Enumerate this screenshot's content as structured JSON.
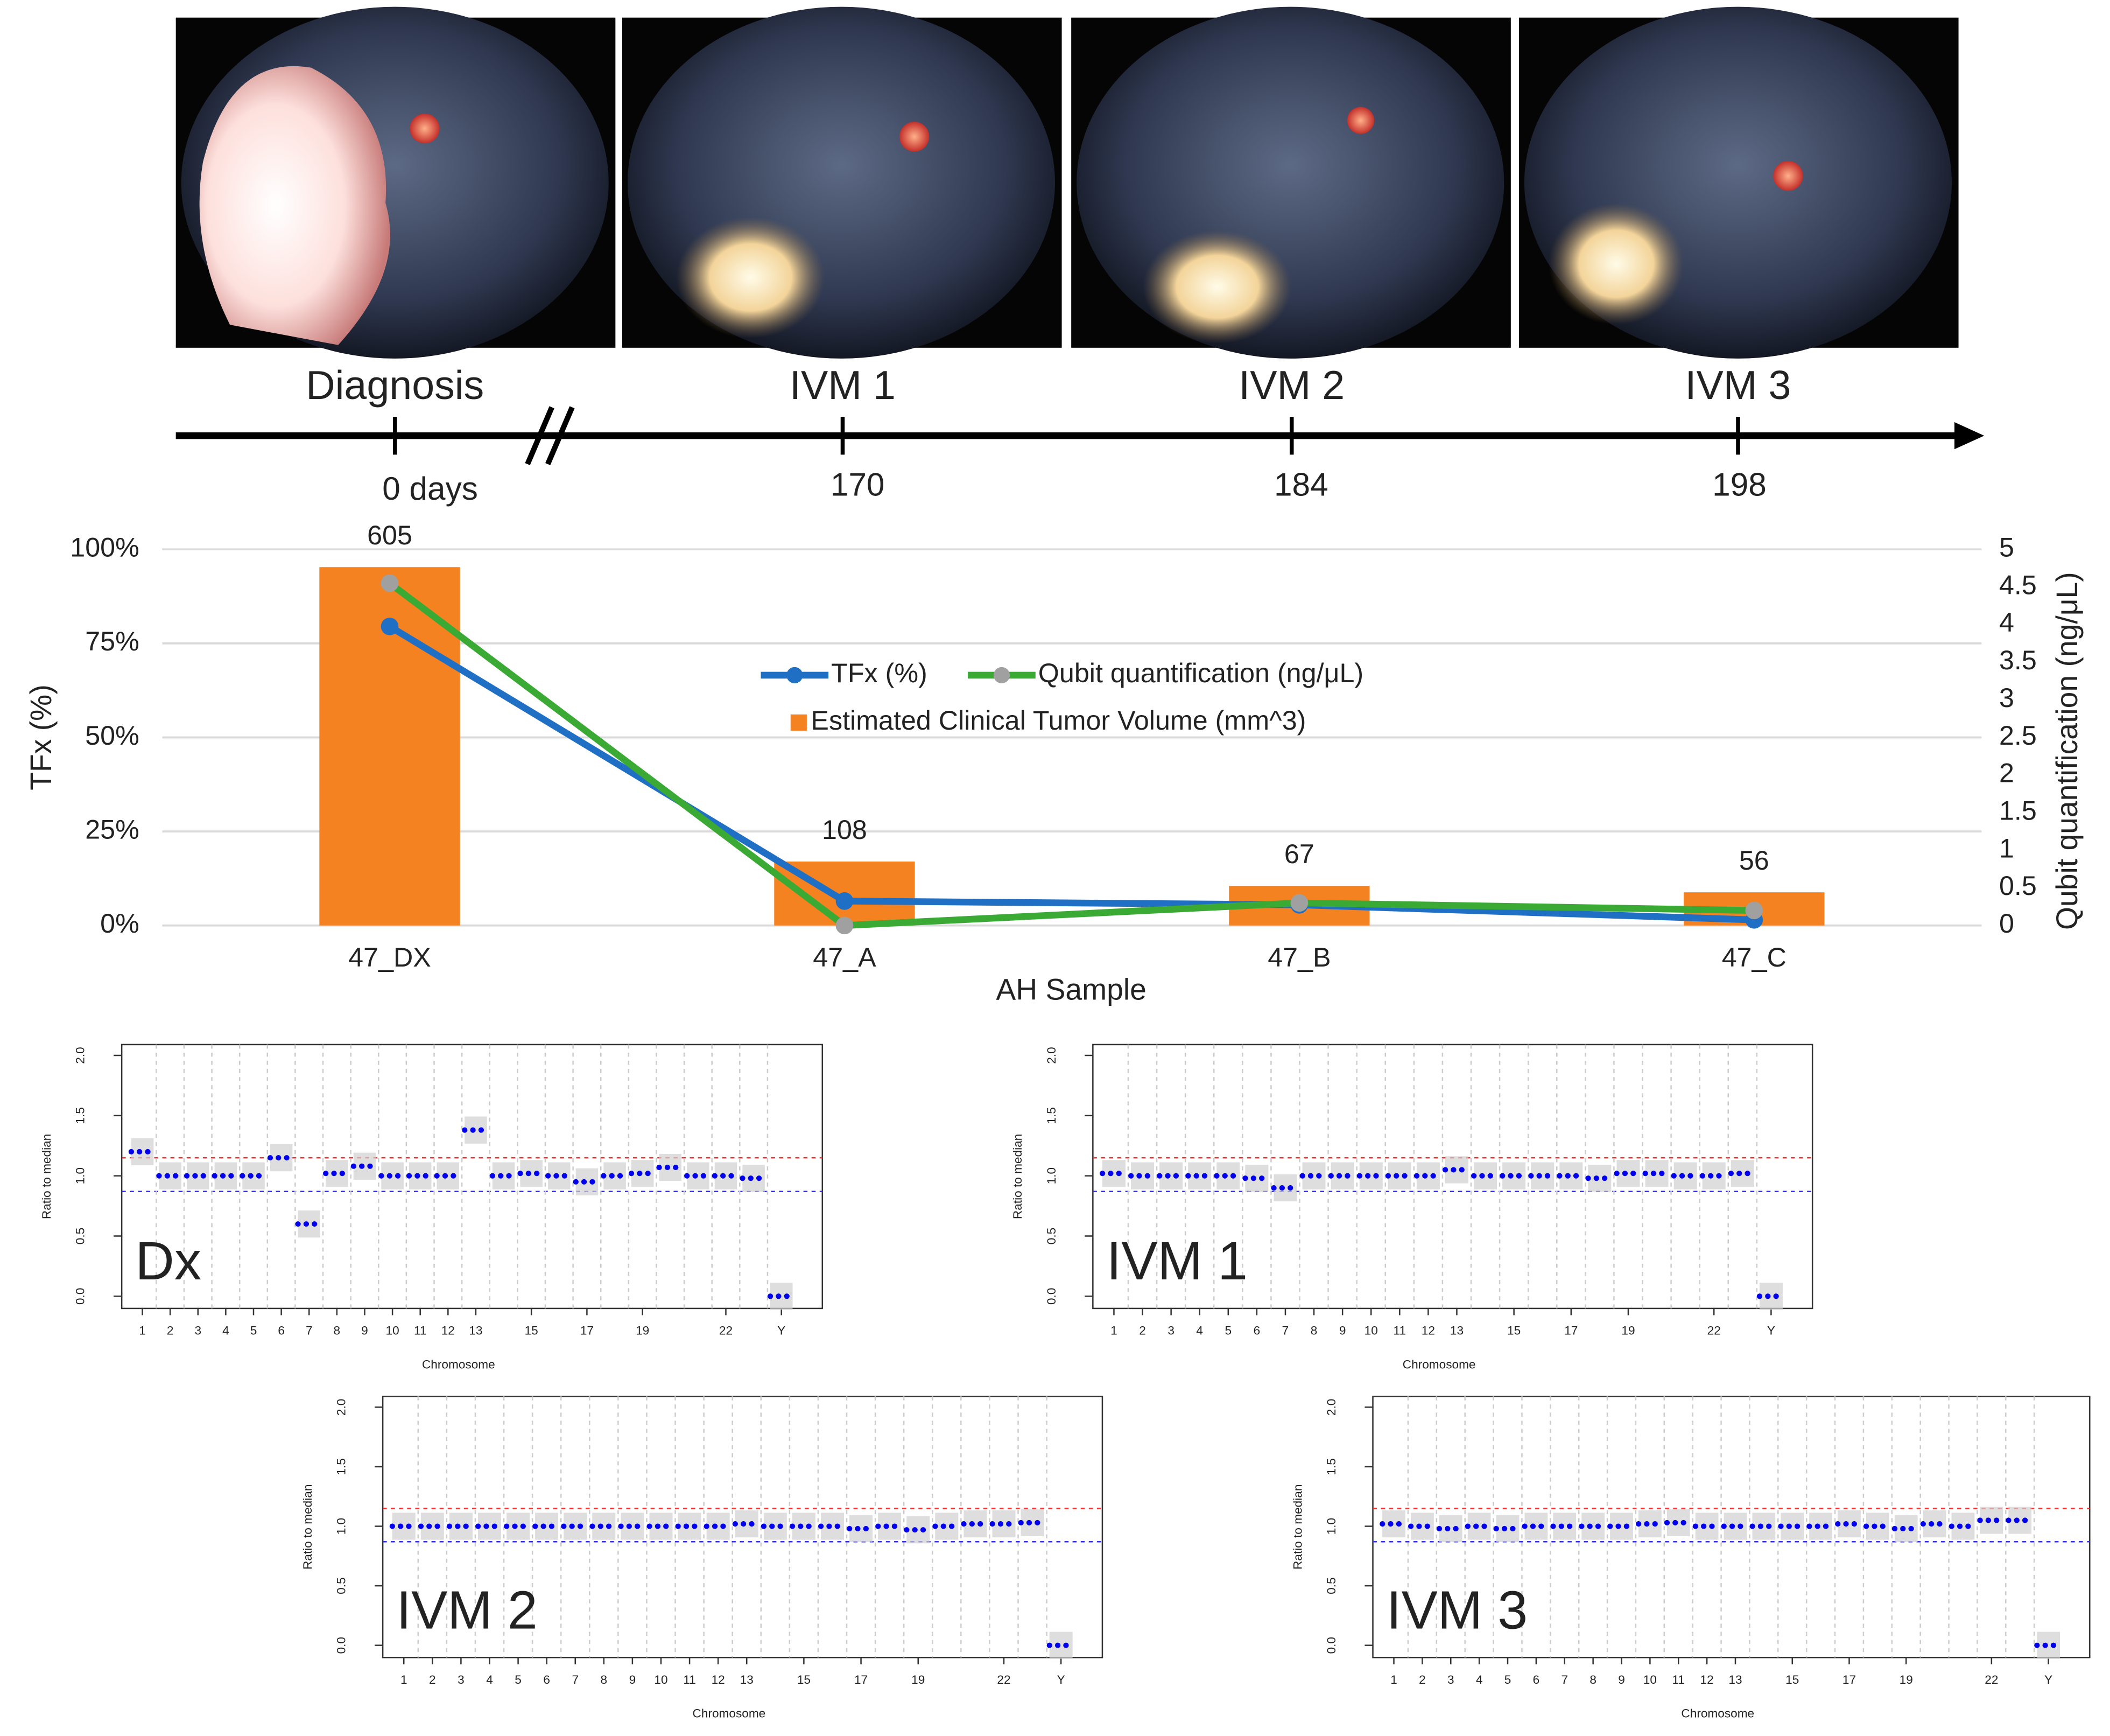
{
  "timeline": {
    "events": [
      {
        "label": "Diagnosis",
        "time": "0 days"
      },
      {
        "label": "IVM 1",
        "time": "170"
      },
      {
        "label": "IVM 2",
        "time": "184"
      },
      {
        "label": "IVM 3",
        "time": "198"
      }
    ]
  },
  "chart_data": [
    {
      "type": "combo",
      "categories": [
        "47_DX",
        "47_A",
        "47_B",
        "47_C"
      ],
      "xlabel": "AH Sample",
      "ylabel": "TFx (%)",
      "y2label": "Qubit quantification (ng/μL)",
      "ylim": [
        0,
        100
      ],
      "yticks": [
        {
          "value": 0,
          "label": "0%"
        },
        {
          "value": 25,
          "label": "25%"
        },
        {
          "value": 50,
          "label": "50%"
        },
        {
          "value": 75,
          "label": "75%"
        },
        {
          "value": 100,
          "label": "100%"
        }
      ],
      "y2lim": [
        0,
        5
      ],
      "y2ticks": [
        0,
        0.5,
        1,
        1.5,
        2,
        2.5,
        3,
        3.5,
        4,
        4.5,
        5
      ],
      "y3lim": [
        0,
        635
      ],
      "grid": true,
      "legend": "center",
      "series": [
        {
          "name": "Estimated Clinical Tumor Volume (mm^3)",
          "type": "bar",
          "axis": "y3",
          "color": "#f58220",
          "values": [
            605,
            108,
            67,
            56
          ]
        },
        {
          "name": "TFx (%)",
          "type": "line",
          "axis": "y",
          "color": "#1f6fc5",
          "marker_color": "#1f6fc5",
          "values": [
            79.5,
            6.5,
            5.5,
            1.5
          ]
        },
        {
          "name": "Qubit quantification (ng/μL)",
          "type": "line",
          "axis": "y2",
          "color": "#3aaa35",
          "marker_color": "#a0a0a0",
          "values": [
            4.55,
            0.0,
            0.3,
            0.2
          ]
        }
      ]
    },
    {
      "type": "cnv",
      "label": "Dx",
      "xlabel": "Chromosome",
      "ylabel": "Ratio to median",
      "color": "#0000ee",
      "categories": [
        "1",
        "2",
        "3",
        "4",
        "5",
        "6",
        "7",
        "8",
        "9",
        "10",
        "11",
        "12",
        "13",
        null,
        "15",
        null,
        "17",
        null,
        "19",
        null,
        null,
        "22",
        null,
        "Y"
      ],
      "values": [
        1.2,
        1.0,
        1.0,
        1.0,
        1.0,
        1.15,
        0.6,
        1.02,
        1.08,
        1.0,
        1.0,
        1.0,
        1.38,
        1.0,
        1.02,
        1.0,
        0.95,
        1.0,
        1.02,
        1.07,
        1.0,
        1.0,
        0.98,
        0.0
      ],
      "ylim": [
        0,
        2
      ],
      "yticks": [
        {
          "value": 0,
          "label": "0.0"
        },
        0.5,
        {
          "value": 1,
          "label": "1.0"
        },
        1.5,
        {
          "value": 2,
          "label": "2.0"
        }
      ],
      "hlines": [
        {
          "value": 1.15,
          "color": "#e33"
        },
        {
          "value": 0.87,
          "color": "#33e"
        }
      ]
    },
    {
      "type": "cnv",
      "label": "IVM 1",
      "xlabel": "Chromosome",
      "ylabel": "Ratio to median",
      "color": "#0000ee",
      "categories": [
        "1",
        "2",
        "3",
        "4",
        "5",
        "6",
        "7",
        "8",
        "9",
        "10",
        "11",
        "12",
        "13",
        null,
        "15",
        null,
        "17",
        null,
        "19",
        null,
        null,
        "22",
        null,
        "Y"
      ],
      "values": [
        1.02,
        1.0,
        1.0,
        1.0,
        1.0,
        0.98,
        0.9,
        1.0,
        1.0,
        1.0,
        1.0,
        1.0,
        1.05,
        1.0,
        1.0,
        1.0,
        1.0,
        0.98,
        1.02,
        1.02,
        1.0,
        1.0,
        1.02,
        0.0
      ],
      "ylim": [
        0,
        2
      ],
      "yticks": [
        {
          "value": 0,
          "label": "0.0"
        },
        0.5,
        {
          "value": 1,
          "label": "1.0"
        },
        1.5,
        {
          "value": 2,
          "label": "2.0"
        }
      ],
      "hlines": [
        {
          "value": 1.15,
          "color": "#e33"
        },
        {
          "value": 0.87,
          "color": "#33e"
        }
      ]
    },
    {
      "type": "cnv",
      "label": "IVM 2",
      "xlabel": "Chromosome",
      "ylabel": "Ratio to median",
      "color": "#0000ee",
      "categories": [
        "1",
        "2",
        "3",
        "4",
        "5",
        "6",
        "7",
        "8",
        "9",
        "10",
        "11",
        "12",
        "13",
        null,
        "15",
        null,
        "17",
        null,
        "19",
        null,
        null,
        "22",
        null,
        "Y"
      ],
      "values": [
        1.0,
        1.0,
        1.0,
        1.0,
        1.0,
        1.0,
        1.0,
        1.0,
        1.0,
        1.0,
        1.0,
        1.0,
        1.02,
        1.0,
        1.0,
        1.0,
        0.98,
        1.0,
        0.97,
        1.0,
        1.02,
        1.02,
        1.03,
        0.0
      ],
      "ylim": [
        0,
        2
      ],
      "yticks": [
        {
          "value": 0,
          "label": "0.0"
        },
        0.5,
        {
          "value": 1,
          "label": "1.0"
        },
        1.5,
        {
          "value": 2,
          "label": "2.0"
        }
      ],
      "hlines": [
        {
          "value": 1.15,
          "color": "#e33"
        },
        {
          "value": 0.87,
          "color": "#33e"
        }
      ]
    },
    {
      "type": "cnv",
      "label": "IVM 3",
      "xlabel": "Chromosome",
      "ylabel": "Ratio to median",
      "color": "#0000ee",
      "categories": [
        "1",
        "2",
        "3",
        "4",
        "5",
        "6",
        "7",
        "8",
        "9",
        "10",
        "11",
        "12",
        "13",
        null,
        "15",
        null,
        "17",
        null,
        "19",
        null,
        null,
        "22",
        null,
        "Y"
      ],
      "values": [
        1.02,
        1.0,
        0.98,
        1.0,
        0.98,
        1.0,
        1.0,
        1.0,
        1.0,
        1.02,
        1.03,
        1.0,
        1.0,
        1.0,
        1.0,
        1.0,
        1.02,
        1.0,
        0.98,
        1.02,
        1.0,
        1.05,
        1.05,
        0.0
      ],
      "ylim": [
        0,
        2
      ],
      "yticks": [
        {
          "value": 0,
          "label": "0.0"
        },
        0.5,
        {
          "value": 1,
          "label": "1.0"
        },
        1.5,
        {
          "value": 2,
          "label": "2.0"
        }
      ],
      "hlines": [
        {
          "value": 1.15,
          "color": "#e33"
        },
        {
          "value": 0.87,
          "color": "#33e"
        }
      ]
    }
  ]
}
